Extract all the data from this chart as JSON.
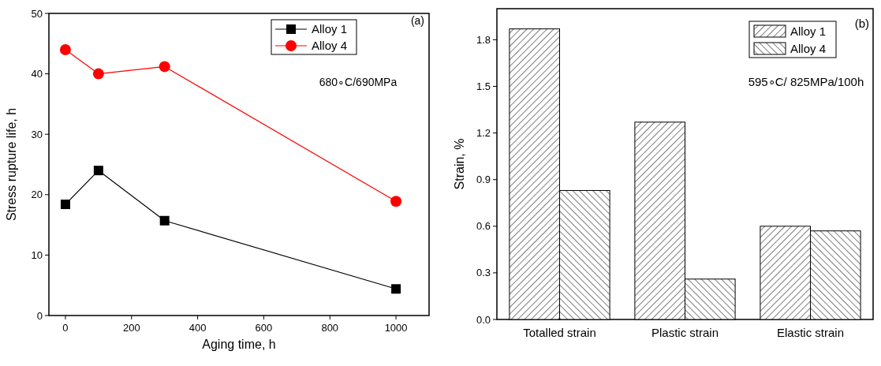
{
  "chart_data": [
    {
      "type": "line",
      "xlabel": "Aging time, h",
      "ylabel": "Stress rupture life, h",
      "x": [
        0,
        100,
        300,
        1000
      ],
      "xlim": [
        -50,
        1100
      ],
      "xticks": [
        0,
        200,
        400,
        600,
        800,
        1000
      ],
      "ylim": [
        0,
        50
      ],
      "yticks": [
        0,
        10,
        20,
        30,
        40,
        50
      ],
      "legend": "top right",
      "grid": false,
      "line_style": "solid",
      "annotations": [
        "(a)",
        "680∘C/690MPa"
      ],
      "series": [
        {
          "name": "Alloy 1",
          "color": "#000000",
          "marker": "square",
          "values": [
            18.4,
            24.0,
            15.7,
            4.4
          ]
        },
        {
          "name": "Alloy 4",
          "color": "#ff0000",
          "marker": "circle",
          "values": [
            44.0,
            40.0,
            41.2,
            18.9
          ]
        }
      ]
    },
    {
      "type": "bar",
      "ylabel": "Strain, %",
      "categories": [
        "Totalled strain",
        "Plastic strain",
        "Elastic strain"
      ],
      "ylim": [
        0,
        2.0
      ],
      "yticks": [
        {
          "value": 0,
          "label": "0.0"
        },
        0.3,
        0.6,
        0.9,
        1.2,
        1.5,
        1.8
      ],
      "legend": "top right",
      "grid": false,
      "annotations": [
        "(b)",
        "595∘C/ 825MPa/100h"
      ],
      "series": [
        {
          "name": "Alloy 1",
          "color": "#000000",
          "values": [
            1.87,
            1.27,
            0.6
          ]
        },
        {
          "name": "Alloy 4",
          "color": "#000000",
          "values": [
            0.83,
            0.26,
            0.57
          ]
        }
      ]
    }
  ]
}
